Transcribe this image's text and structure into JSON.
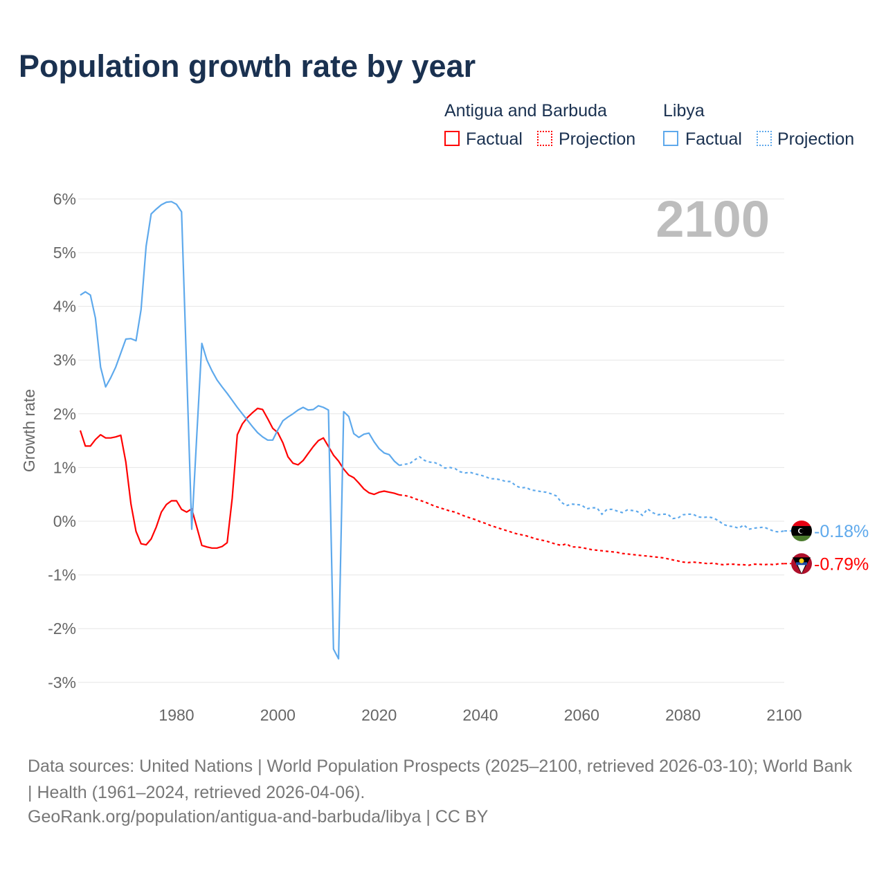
{
  "chart_data": {
    "type": "line",
    "title": "Population growth rate by year",
    "ylabel": "Growth rate",
    "xlabel": "",
    "xlim": [
      1961,
      2100
    ],
    "ylim": [
      -3,
      6
    ],
    "x_ticks": [
      "1980",
      "2000",
      "2020",
      "2040",
      "2060",
      "2080",
      "2100"
    ],
    "x_tick_values": [
      1980,
      2000,
      2020,
      2040,
      2060,
      2080,
      2100
    ],
    "y_ticks": [
      "6%",
      "5%",
      "4%",
      "3%",
      "2%",
      "1%",
      "0%",
      "-1%",
      "-2%",
      "-3%"
    ],
    "y_tick_values": [
      6,
      5,
      4,
      3,
      2,
      1,
      0,
      -1,
      -2,
      -3
    ],
    "year_label": "2100",
    "legend": {
      "groups": [
        {
          "name": "Antigua and Barbuda",
          "factual": "Factual",
          "projection": "Projection"
        },
        {
          "name": "Libya",
          "factual": "Factual",
          "projection": "Projection"
        }
      ],
      "placement": "top-right"
    },
    "series": [
      {
        "name": "Antigua and Barbuda",
        "color": "#ff0000",
        "end_label": "-0.79%",
        "factual_start": 1961,
        "factual": [
          1.69,
          1.4,
          1.4,
          1.52,
          1.61,
          1.55,
          1.55,
          1.57,
          1.6,
          1.1,
          0.32,
          -0.19,
          -0.42,
          -0.44,
          -0.33,
          -0.11,
          0.17,
          0.31,
          0.38,
          0.38,
          0.22,
          0.17,
          0.23,
          -0.11,
          -0.45,
          -0.48,
          -0.5,
          -0.5,
          -0.47,
          -0.4,
          0.43,
          1.61,
          1.81,
          1.93,
          2.02,
          2.1,
          2.08,
          1.91,
          1.73,
          1.65,
          1.46,
          1.2,
          1.08,
          1.05,
          1.13,
          1.26,
          1.39,
          1.5,
          1.55,
          1.39,
          1.23,
          1.12,
          0.97,
          0.86,
          0.81,
          0.71,
          0.6,
          0.53,
          0.5,
          0.54,
          0.56,
          0.54,
          0.52,
          0.49
        ],
        "projection_start": 2025,
        "projection": [
          0.48,
          0.46,
          0.42,
          0.39,
          0.36,
          0.32,
          0.28,
          0.25,
          0.22,
          0.19,
          0.17,
          0.13,
          0.09,
          0.06,
          0.03,
          -0.01,
          -0.04,
          -0.08,
          -0.11,
          -0.14,
          -0.17,
          -0.2,
          -0.23,
          -0.25,
          -0.27,
          -0.3,
          -0.33,
          -0.35,
          -0.37,
          -0.4,
          -0.43,
          -0.45,
          -0.42,
          -0.48,
          -0.48,
          -0.49,
          -0.51,
          -0.53,
          -0.54,
          -0.55,
          -0.56,
          -0.57,
          -0.58,
          -0.6,
          -0.61,
          -0.62,
          -0.63,
          -0.64,
          -0.65,
          -0.66,
          -0.67,
          -0.68,
          -0.7,
          -0.72,
          -0.74,
          -0.76,
          -0.77,
          -0.76,
          -0.77,
          -0.78,
          -0.79,
          -0.78,
          -0.8,
          -0.81,
          -0.8,
          -0.8,
          -0.81,
          -0.81,
          -0.82,
          -0.8,
          -0.8,
          -0.81,
          -0.8,
          -0.81,
          -0.79,
          -0.79
        ]
      },
      {
        "name": "Libya",
        "color": "#5ea9ec",
        "end_label": "-0.18%",
        "factual_start": 1961,
        "factual": [
          4.21,
          4.27,
          4.21,
          3.78,
          2.87,
          2.5,
          2.67,
          2.87,
          3.13,
          3.39,
          3.4,
          3.36,
          3.94,
          5.12,
          5.72,
          5.81,
          5.89,
          5.94,
          5.95,
          5.9,
          5.76,
          2.85,
          -0.15,
          1.6,
          3.31,
          3.0,
          2.8,
          2.63,
          2.5,
          2.38,
          2.25,
          2.12,
          2.0,
          1.88,
          1.76,
          1.65,
          1.57,
          1.51,
          1.51,
          1.7,
          1.87,
          1.94,
          2.0,
          2.07,
          2.12,
          2.07,
          2.08,
          2.15,
          2.12,
          2.07,
          -2.38,
          -2.56,
          2.04,
          1.95,
          1.63,
          1.56,
          1.62,
          1.64,
          1.48,
          1.35,
          1.27,
          1.24,
          1.12,
          1.04
        ],
        "projection_start": 2025,
        "projection": [
          1.06,
          1.07,
          1.14,
          1.2,
          1.13,
          1.1,
          1.09,
          1.05,
          0.99,
          1.0,
          0.98,
          0.92,
          0.9,
          0.91,
          0.88,
          0.86,
          0.83,
          0.79,
          0.79,
          0.77,
          0.74,
          0.74,
          0.66,
          0.62,
          0.63,
          0.58,
          0.57,
          0.55,
          0.54,
          0.51,
          0.47,
          0.35,
          0.29,
          0.32,
          0.31,
          0.3,
          0.23,
          0.25,
          0.25,
          0.13,
          0.22,
          0.22,
          0.19,
          0.16,
          0.21,
          0.2,
          0.18,
          0.11,
          0.23,
          0.16,
          0.12,
          0.13,
          0.13,
          0.05,
          0.06,
          0.12,
          0.13,
          0.13,
          0.08,
          0.07,
          0.08,
          0.06,
          0.01,
          -0.06,
          -0.09,
          -0.1,
          -0.13,
          -0.07,
          -0.15,
          -0.13,
          -0.12,
          -0.11,
          -0.15,
          -0.19,
          -0.2,
          -0.18
        ]
      }
    ]
  },
  "footer": {
    "sources": "Data sources: United Nations | World Population Prospects (2025–2100, retrieved 2026-03-10); World Bank | Health (1961–2024, retrieved 2026-04-06).",
    "url": "GeoRank.org/population/antigua-and-barbuda/libya | CC BY"
  }
}
